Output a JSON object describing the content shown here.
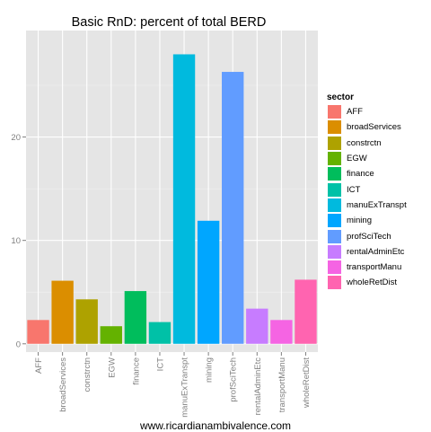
{
  "chart_data": {
    "type": "bar",
    "title": "Basic RnD: percent of total BERD",
    "xlabel": "",
    "ylabel": "",
    "ylim": [
      -0.8,
      30.3
    ],
    "yticks": [
      0,
      10,
      20
    ],
    "grid": true,
    "legend_position": "right",
    "legend_title": "sector",
    "categories": [
      "AFF",
      "broadServices",
      "constrctn",
      "EGW",
      "finance",
      "ICT",
      "manuExTranspt",
      "mining",
      "profSciTech",
      "rentalAdminEtc",
      "transportManu",
      "wholeRetDist"
    ],
    "values": [
      2.3,
      6.1,
      4.3,
      1.7,
      5.1,
      2.1,
      28.0,
      11.9,
      26.3,
      3.4,
      2.3,
      6.2
    ],
    "colors": [
      "#F8766D",
      "#DB8E00",
      "#AEA200",
      "#64B200",
      "#00BD5C",
      "#00C1A7",
      "#00BADE",
      "#00A6FF",
      "#619CFF",
      "#C77CFF",
      "#F564E3",
      "#FF64B0"
    ]
  },
  "caption": "www.ricardianambivalence.com"
}
